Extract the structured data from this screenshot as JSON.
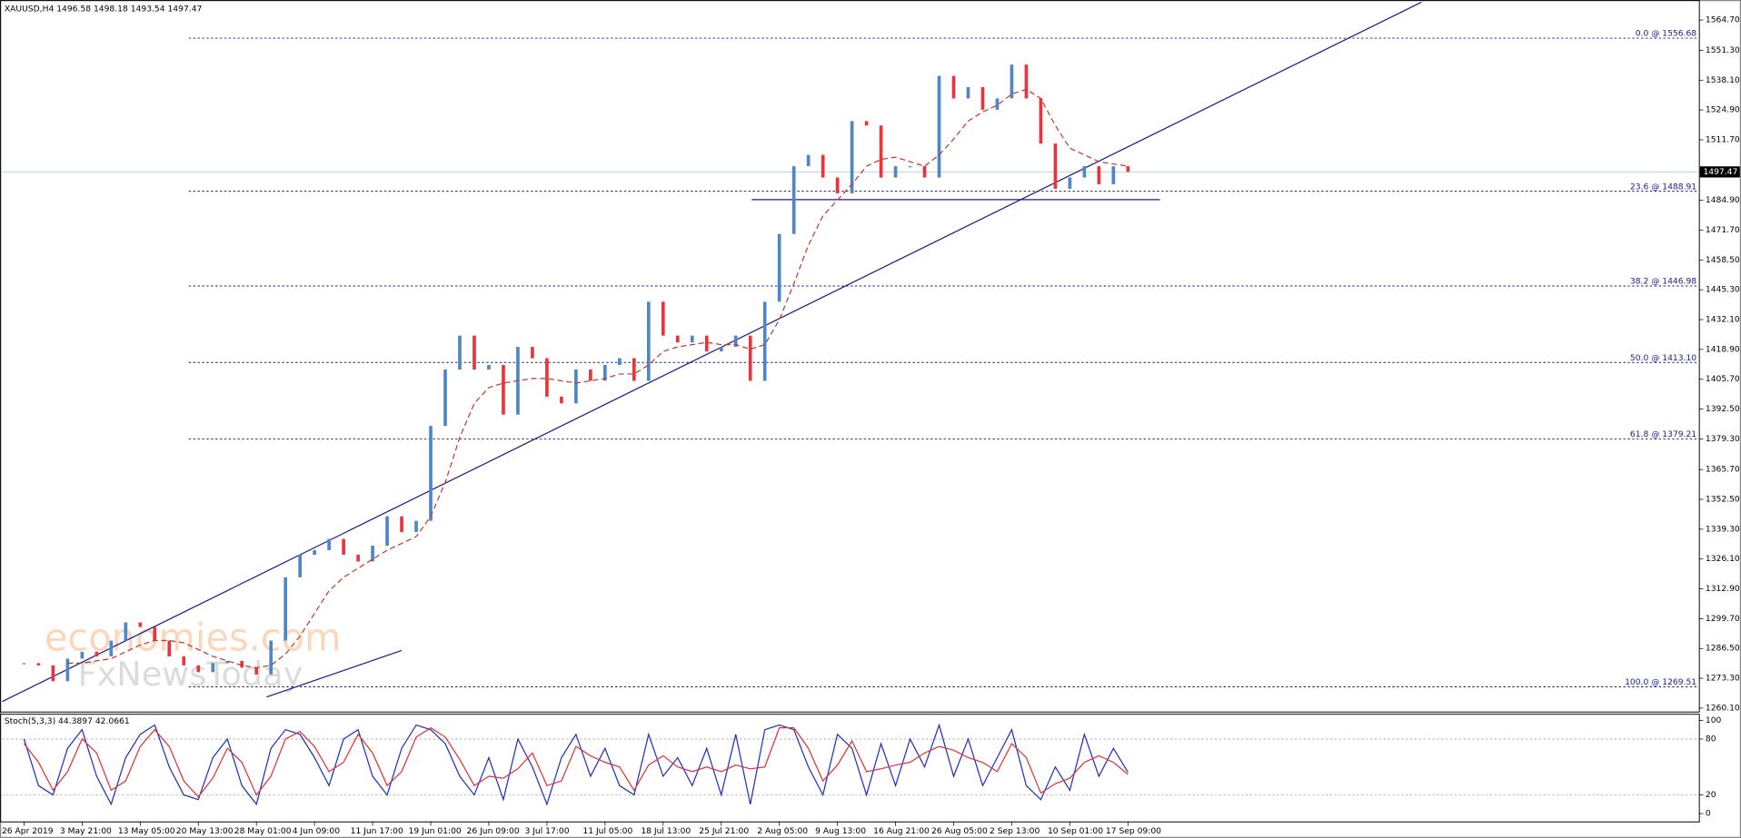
{
  "chart_data": {
    "type": "candlestick",
    "title": "XAUUSD,H4  1496.58 1498.18 1493.54 1497.47",
    "watermark": [
      "economies.com",
      "FxNewsToday"
    ],
    "xlim": [
      -1.5,
      115.3
    ],
    "xticks": [
      {
        "value": 0,
        "label": "26 Apr 2019"
      },
      {
        "value": 4,
        "label": "3 May 21:00"
      },
      {
        "value": 8,
        "label": "13 May 05:00"
      },
      {
        "value": 12,
        "label": "20 May 13:00"
      },
      {
        "value": 16,
        "label": "28 May 01:00"
      },
      {
        "value": 20,
        "label": "4 Jun 09:00"
      },
      {
        "value": 24,
        "label": "11 Jun 17:00"
      },
      {
        "value": 28,
        "label": "19 Jun 01:00"
      },
      {
        "value": 32,
        "label": "26 Jun 09:00"
      },
      {
        "value": 36,
        "label": "3 Jul 17:00"
      },
      {
        "value": 40,
        "label": "11 Jul 05:00"
      },
      {
        "value": 44,
        "label": "18 Jul 13:00"
      },
      {
        "value": 48,
        "label": "25 Jul 21:00"
      },
      {
        "value": 52,
        "label": "2 Aug 05:00"
      },
      {
        "value": 56,
        "label": "9 Aug 13:00"
      },
      {
        "value": 60,
        "label": "16 Aug 21:00"
      },
      {
        "value": 64,
        "label": "26 Aug 05:00"
      },
      {
        "value": 68,
        "label": "2 Sep 13:00"
      },
      {
        "value": 72,
        "label": "10 Sep 01:00"
      },
      {
        "value": 76,
        "label": "17 Sep 09:00"
      }
    ],
    "ylim": [
      1258.6,
      1572.6
    ],
    "yticks": [
      {
        "value": 1564.7,
        "label": "1564.70"
      },
      {
        "value": 1551.3,
        "label": "1551.30"
      },
      {
        "value": 1538.1,
        "label": "1538.10"
      },
      {
        "value": 1524.9,
        "label": "1524.90"
      },
      {
        "value": 1511.7,
        "label": "1511.70"
      },
      {
        "value": 1484.9,
        "label": "1484.90"
      },
      {
        "value": 1471.7,
        "label": "1471.70"
      },
      {
        "value": 1458.5,
        "label": "1458.50"
      },
      {
        "value": 1445.3,
        "label": "1445.30"
      },
      {
        "value": 1432.1,
        "label": "1432.10"
      },
      {
        "value": 1418.9,
        "label": "1418.90"
      },
      {
        "value": 1405.7,
        "label": "1405.70"
      },
      {
        "value": 1392.5,
        "label": "1392.50"
      },
      {
        "value": 1379.3,
        "label": "1379.30"
      },
      {
        "value": 1365.7,
        "label": "1365.70"
      },
      {
        "value": 1352.5,
        "label": "1352.50"
      },
      {
        "value": 1339.3,
        "label": "1339.30"
      },
      {
        "value": 1326.1,
        "label": "1326.10"
      },
      {
        "value": 1312.9,
        "label": "1312.90"
      },
      {
        "value": 1299.7,
        "label": "1299.70"
      },
      {
        "value": 1286.5,
        "label": "1286.50"
      },
      {
        "value": 1273.3,
        "label": "1273.30"
      },
      {
        "value": 1260.1,
        "label": "1260.10"
      }
    ],
    "up_color": "#4f86c6",
    "down_color": "#e8343a",
    "closes": [
      1280,
      1279,
      1272,
      1282,
      1285,
      1283,
      1290,
      1298,
      1296,
      1290,
      1283,
      1279,
      1276,
      1280,
      1281,
      1278,
      1275,
      1290,
      1318,
      1328,
      1330,
      1335,
      1328,
      1325,
      1332,
      1345,
      1338,
      1343,
      1385,
      1410,
      1425,
      1410,
      1412,
      1390,
      1420,
      1415,
      1398,
      1395,
      1410,
      1405,
      1412,
      1415,
      1405,
      1440,
      1425,
      1422,
      1425,
      1418,
      1420,
      1425,
      1405,
      1440,
      1470,
      1500,
      1505,
      1495,
      1488,
      1520,
      1518,
      1495,
      1500,
      1500,
      1495,
      1540,
      1530,
      1535,
      1525,
      1530,
      1545,
      1530,
      1510,
      1490,
      1495,
      1500,
      1492,
      1500,
      1497.47
    ],
    "moving_average": {
      "color": "#c0392b",
      "values": [
        null,
        null,
        null,
        1280,
        1280,
        1281,
        1282,
        1285,
        1288,
        1290,
        1290,
        1289,
        1286,
        1283,
        1281,
        1279,
        1278,
        1279,
        1284,
        1292,
        1302,
        1312,
        1318,
        1322,
        1326,
        1330,
        1333,
        1336,
        1345,
        1360,
        1380,
        1395,
        1402,
        1404,
        1405,
        1406,
        1406,
        1405,
        1404,
        1405,
        1406,
        1408,
        1408,
        1412,
        1418,
        1420,
        1421,
        1422,
        1421,
        1421,
        1419,
        1421,
        1432,
        1448,
        1465,
        1478,
        1485,
        1492,
        1500,
        1503,
        1504,
        1502,
        1500,
        1505,
        1512,
        1520,
        1524,
        1527,
        1532,
        1534,
        1530,
        1518,
        1508,
        1505,
        1502,
        1501,
        1500
      ]
    },
    "last_price": {
      "value": 1497.47,
      "label": "1497.47"
    },
    "fibonacci": {
      "color": "#1a1a8c",
      "levels": [
        {
          "value": 1556.68,
          "label": "0.0 @ 1556.68"
        },
        {
          "value": 1488.91,
          "label": "23.6 @ 1488.91"
        },
        {
          "value": 1446.98,
          "label": "38.2 @ 1446.98"
        },
        {
          "value": 1413.1,
          "label": "50.0 @ 1413.10"
        },
        {
          "value": 1379.21,
          "label": "61.8 @ 1379.21"
        },
        {
          "value": 1269.51,
          "label": "100.0 @ 1269.51"
        }
      ]
    },
    "line_color": "#1a1a8c",
    "trendlines": [
      {
        "x": [
          -1.5,
          96.2
        ],
        "y": [
          1263.0,
          1572.6
        ]
      },
      {
        "x": [
          16.7,
          26.0
        ],
        "y": [
          1265.0,
          1285.6
        ]
      },
      {
        "x": [
          50.1,
          78.2
        ],
        "y": [
          1485.2,
          1485.2
        ]
      }
    ],
    "stochastic": {
      "title": "Stoch(5,3,3) 44.3897 42.0661",
      "ylim": [
        0,
        100
      ],
      "yticks": [
        100,
        80,
        20,
        0
      ],
      "series": [
        {
          "color": "#1f2fbf",
          "values": [
            80,
            30,
            20,
            70,
            90,
            40,
            10,
            60,
            85,
            95,
            50,
            20,
            15,
            60,
            80,
            30,
            10,
            70,
            90,
            85,
            60,
            30,
            80,
            90,
            40,
            20,
            70,
            95,
            90,
            75,
            40,
            20,
            60,
            15,
            80,
            50,
            10,
            60,
            85,
            40,
            70,
            30,
            20,
            85,
            40,
            60,
            30,
            70,
            20,
            85,
            10,
            90,
            95,
            90,
            50,
            20,
            85,
            70,
            20,
            75,
            30,
            80,
            50,
            95,
            40,
            80,
            30,
            60,
            90,
            30,
            15,
            50,
            25,
            85,
            40,
            70,
            44.39
          ]
        },
        {
          "color": "#e0303a",
          "values": [
            75,
            55,
            25,
            45,
            80,
            65,
            25,
            35,
            72,
            90,
            72,
            35,
            18,
            38,
            70,
            55,
            20,
            40,
            80,
            88,
            72,
            45,
            55,
            85,
            65,
            30,
            45,
            82,
            92,
            82,
            58,
            30,
            40,
            38,
            48,
            65,
            30,
            35,
            72,
            62,
            55,
            50,
            25,
            52,
            62,
            50,
            45,
            50,
            45,
            52,
            48,
            50,
            92,
            92,
            70,
            35,
            52,
            78,
            45,
            48,
            52,
            55,
            65,
            72,
            68,
            60,
            55,
            45,
            75,
            60,
            22,
            32,
            38,
            55,
            62,
            55,
            42.07
          ]
        }
      ]
    }
  }
}
